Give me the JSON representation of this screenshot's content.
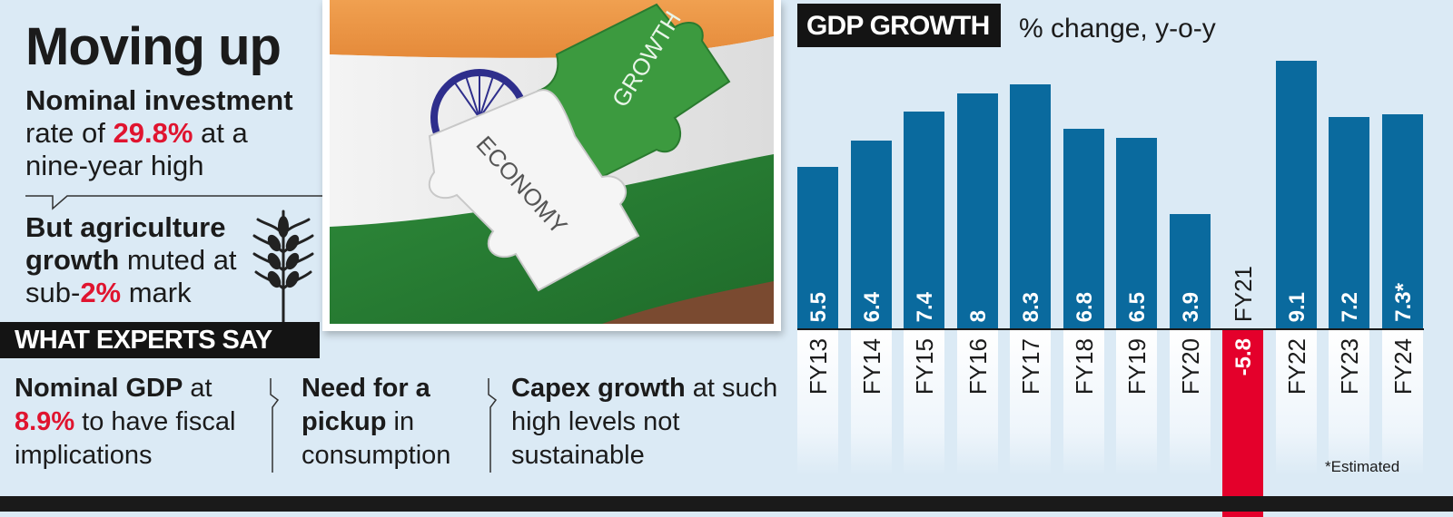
{
  "headline": {
    "title": "Moving up",
    "point1": {
      "bold": "Nominal investment",
      "text1": "rate of ",
      "highlight": "29.8%",
      "text2": " at a nine-year high"
    },
    "point2": {
      "bold": "But agriculture growth",
      "text1": " muted at sub-",
      "highlight": "2%",
      "text2": " mark"
    },
    "icon": "wheat-icon"
  },
  "experts": {
    "heading": "WHAT EXPERTS SAY",
    "items": [
      {
        "bold": "Nominal GDP",
        "text1": " at ",
        "highlight": "8.9%",
        "text2": " to have fiscal implications"
      },
      {
        "bold": "Need for a pickup",
        "text1": " in consumption",
        "highlight": "",
        "text2": ""
      },
      {
        "bold": "Capex growth",
        "text1": " at such high levels not sustainable",
        "highlight": "",
        "text2": ""
      }
    ]
  },
  "photo": {
    "piece_left_label": "ECONOMY",
    "piece_right_label": "GROWTH"
  },
  "colors": {
    "background": "#dbeaf5",
    "bar_positive": "#0a6a9e",
    "bar_negative": "#e4002b",
    "highlight_red": "#e0142f",
    "title_box": "#141414"
  },
  "chart_data": {
    "type": "bar",
    "title": "GDP GROWTH",
    "subtitle": "% change, y-o-y",
    "xlabel": "",
    "ylabel": "% change, y-o-y",
    "categories": [
      "FY13",
      "FY14",
      "FY15",
      "FY16",
      "FY17",
      "FY18",
      "FY19",
      "FY20",
      "FY21",
      "FY22",
      "FY23",
      "FY24"
    ],
    "values": [
      5.5,
      6.4,
      7.4,
      8,
      8.3,
      6.8,
      6.5,
      3.9,
      -5.8,
      9.1,
      7.2,
      7.3
    ],
    "value_labels": [
      "5.5",
      "6.4",
      "7.4",
      "8",
      "8.3",
      "6.8",
      "6.5",
      "3.9",
      "-5.8",
      "9.1",
      "7.2",
      "7.3*"
    ],
    "ylim": [
      -6,
      10
    ],
    "grid": false,
    "legend": "none",
    "annotations": [
      "*Estimated"
    ],
    "note": "*Estimated"
  }
}
